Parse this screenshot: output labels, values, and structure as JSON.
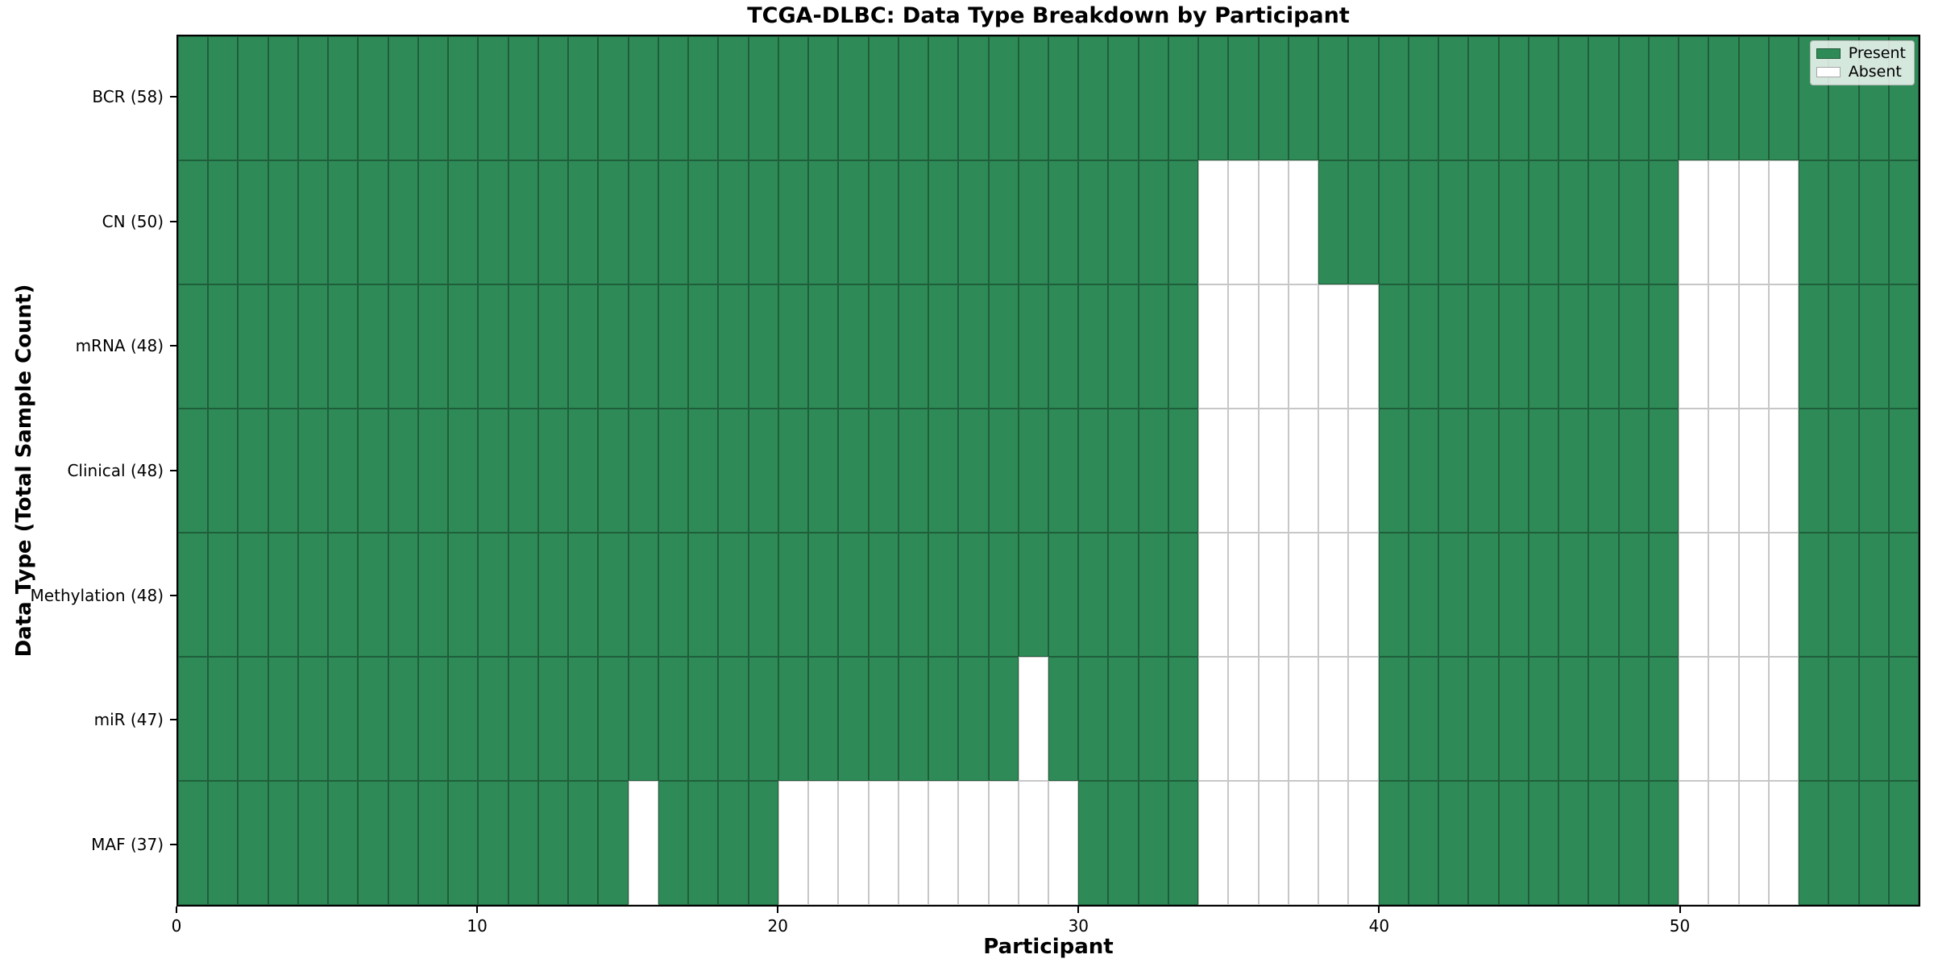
{
  "title": "TCGA-DLBC: Data Type Breakdown by Participant",
  "xlabel": "Participant",
  "ylabel": "Data Type (Total Sample Count)",
  "legend": {
    "present_label": "Present",
    "absent_label": "Absent"
  },
  "colors": {
    "present": "#2e8b57",
    "absent": "#ffffff",
    "cell_edge": "rgba(0,0,0,0.32)",
    "spine": "#000000",
    "legend_border": "#b5b5b5"
  },
  "chart_data": {
    "type": "heatmap",
    "title": "TCGA-DLBC: Data Type Breakdown by Participant",
    "xlabel": "Participant",
    "ylabel": "Data Type (Total Sample Count)",
    "legend": [
      "Present",
      "Absent"
    ],
    "legend_position": "upper right",
    "grid": true,
    "n_participants": 58,
    "x_ticks": [
      0,
      10,
      20,
      30,
      40,
      50
    ],
    "x_range": [
      0,
      58
    ],
    "value_encoding": {
      "present": 1,
      "absent": 0
    },
    "rows": [
      {
        "data_type": "BCR",
        "label": "BCR (58)",
        "present_count": 58,
        "absent_participants": []
      },
      {
        "data_type": "CN",
        "label": "CN (50)",
        "present_count": 50,
        "absent_participants": [
          34,
          35,
          36,
          37,
          50,
          51,
          52,
          53
        ]
      },
      {
        "data_type": "mRNA",
        "label": "mRNA (48)",
        "present_count": 48,
        "absent_participants": [
          34,
          35,
          36,
          37,
          38,
          39,
          50,
          51,
          52,
          53
        ]
      },
      {
        "data_type": "Clinical",
        "label": "Clinical (48)",
        "present_count": 48,
        "absent_participants": [
          34,
          35,
          36,
          37,
          38,
          39,
          50,
          51,
          52,
          53
        ]
      },
      {
        "data_type": "Methylation",
        "label": "Methylation (48)",
        "present_count": 48,
        "absent_participants": [
          34,
          35,
          36,
          37,
          38,
          39,
          50,
          51,
          52,
          53
        ]
      },
      {
        "data_type": "miR",
        "label": "miR (47)",
        "present_count": 47,
        "absent_participants": [
          28,
          34,
          35,
          36,
          37,
          38,
          39,
          50,
          51,
          52,
          53
        ]
      },
      {
        "data_type": "MAF",
        "label": "MAF (37)",
        "present_count": 37,
        "absent_participants": [
          15,
          20,
          21,
          22,
          23,
          24,
          25,
          26,
          27,
          28,
          29,
          34,
          35,
          36,
          37,
          38,
          39,
          50,
          51,
          52,
          53
        ]
      }
    ]
  }
}
